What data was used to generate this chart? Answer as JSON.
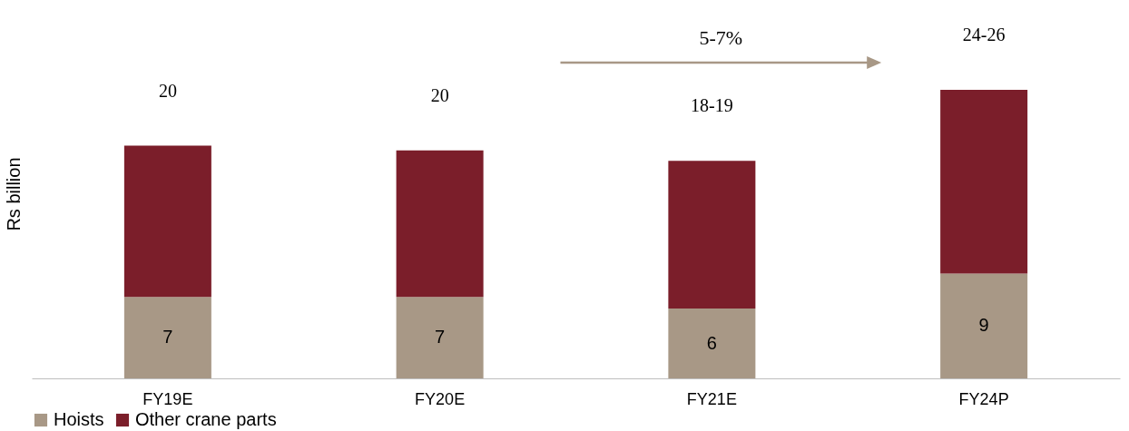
{
  "chart_data": {
    "type": "bar",
    "stacked": true,
    "ylabel": "Rs billion",
    "categories": [
      "FY19E",
      "FY20E",
      "FY21E",
      "FY24P"
    ],
    "series": [
      {
        "name": "Hoists",
        "color": "#a89886",
        "values": [
          7,
          7,
          6,
          9
        ],
        "value_labels": [
          "7",
          "7",
          "6",
          "9"
        ]
      },
      {
        "name": "Other crane parts",
        "color": "#7b1e2a",
        "values": [
          13,
          12.6,
          12.7,
          15.8
        ]
      }
    ],
    "totals": [
      "20",
      "20",
      "18-19",
      "24-26"
    ],
    "annotations": [
      "5-7%"
    ],
    "legend": "bottom",
    "grid": false
  }
}
